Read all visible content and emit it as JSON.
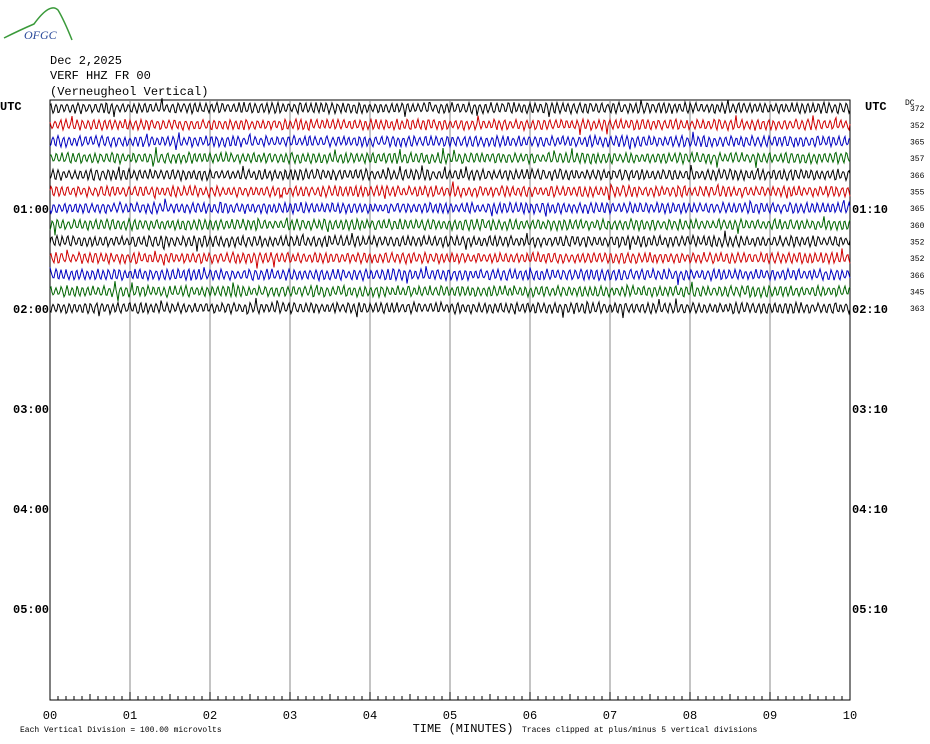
{
  "logo": "OFGC",
  "header": {
    "date": "Dec 2,2025",
    "station": "VERF HHZ FR 00",
    "location": "(Verneugheol Vertical)"
  },
  "left_axis": {
    "title": "UTC",
    "labels": [
      "01:00",
      "02:00",
      "03:00",
      "04:00",
      "05:00"
    ]
  },
  "right_axis": {
    "title": "UTC",
    "labels": [
      "01:10",
      "02:10",
      "03:10",
      "04:10",
      "05:10"
    ]
  },
  "dc": {
    "title": "DC",
    "values": [
      372,
      352,
      365,
      357,
      366,
      355,
      365,
      360,
      352,
      352,
      366,
      345,
      363
    ]
  },
  "x_axis": {
    "title": "TIME (MINUTES)",
    "labels": [
      "00",
      "01",
      "02",
      "03",
      "04",
      "05",
      "06",
      "07",
      "08",
      "09",
      "10"
    ]
  },
  "footer": {
    "scale": "Each Vertical Division =  100.00 microvolts",
    "clip": "Traces clipped at plus/minus 5 vertical divisions"
  }
}
